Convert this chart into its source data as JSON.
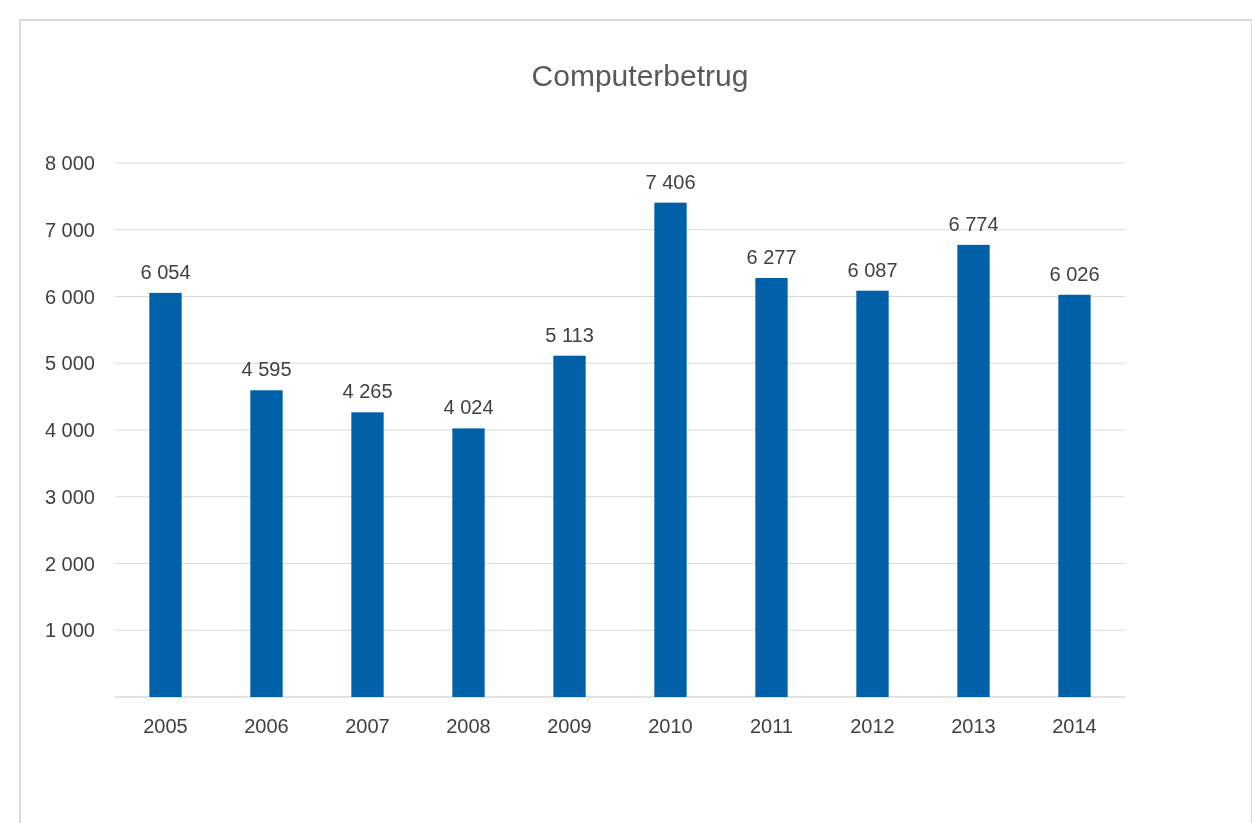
{
  "chart_data": {
    "type": "bar",
    "title": "Computerbetrug",
    "categories": [
      "2005",
      "2006",
      "2007",
      "2008",
      "2009",
      "2010",
      "2011",
      "2012",
      "2013",
      "2014"
    ],
    "values": [
      6054,
      4595,
      4265,
      4024,
      5113,
      7406,
      6277,
      6087,
      6774,
      6026
    ],
    "value_labels": [
      "6 054",
      "4 595",
      "4 265",
      "4 024",
      "5 113",
      "7 406",
      "6 277",
      "6 087",
      "6 774",
      "6 026"
    ],
    "color": "#0061a8",
    "ylim": [
      0,
      8000
    ],
    "yticks": [
      {
        "value": 1000,
        "label": "1 000"
      },
      {
        "value": 2000,
        "label": "2 000"
      },
      {
        "value": 3000,
        "label": "3 000"
      },
      {
        "value": 4000,
        "label": "4 000"
      },
      {
        "value": 5000,
        "label": "5 000"
      },
      {
        "value": 6000,
        "label": "6 000"
      },
      {
        "value": 7000,
        "label": "7 000"
      },
      {
        "value": 8000,
        "label": "8 000"
      }
    ],
    "grid": "y"
  }
}
